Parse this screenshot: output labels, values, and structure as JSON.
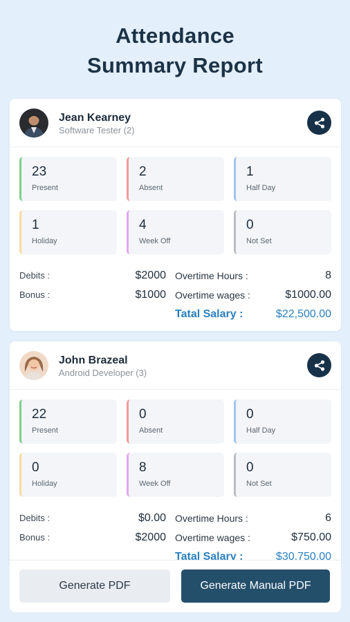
{
  "header": {
    "title_line1": "Attendance",
    "title_line2": "Summary Report"
  },
  "employees": [
    {
      "name": "Jean Kearney",
      "role": "Software Tester (2)",
      "avatar": "avatar-man",
      "stats": [
        {
          "value": "23",
          "label": "Present",
          "color": "#7ccf8a"
        },
        {
          "value": "2",
          "label": "Absent",
          "color": "#f29a9a"
        },
        {
          "value": "1",
          "label": "Half Day",
          "color": "#9fc3f0"
        },
        {
          "value": "1",
          "label": "Holiday",
          "color": "#f5dca0"
        },
        {
          "value": "4",
          "label": "Week Off",
          "color": "#e2a6ef"
        },
        {
          "value": "0",
          "label": "Not Set",
          "color": "#b9bdc2"
        }
      ],
      "debits_label": "Debits :",
      "debits": "$2000",
      "bonus_label": "Bonus :",
      "bonus": "$1000",
      "ot_hours_label": "Overtime Hours :",
      "ot_hours": "8",
      "ot_wages_label": "Overtime wages :",
      "ot_wages": "$1000.00",
      "salary_label": "Tatal Salary :",
      "salary": "$22,500.00"
    },
    {
      "name": "John Brazeal",
      "role": "Android Developer (3)",
      "avatar": "avatar-woman",
      "stats": [
        {
          "value": "22",
          "label": "Present",
          "color": "#7ccf8a"
        },
        {
          "value": "0",
          "label": "Absent",
          "color": "#f29a9a"
        },
        {
          "value": "0",
          "label": "Half Day",
          "color": "#9fc3f0"
        },
        {
          "value": "0",
          "label": "Holiday",
          "color": "#f5dca0"
        },
        {
          "value": "8",
          "label": "Week Off",
          "color": "#e2a6ef"
        },
        {
          "value": "0",
          "label": "Not Set",
          "color": "#b9bdc2"
        }
      ],
      "debits_label": "Debits :",
      "debits": "$0.00",
      "bonus_label": "Bonus :",
      "bonus": "$2000",
      "ot_hours_label": "Overtime Hours :",
      "ot_hours": "6",
      "ot_wages_label": "Overtime wages :",
      "ot_wages": "$750.00",
      "salary_label": "Tatal Salary :",
      "salary": "$30,750.00"
    }
  ],
  "actions": {
    "generate_pdf": "Generate PDF",
    "generate_manual_pdf": "Generate Manual PDF"
  },
  "icons": {
    "share": "share-icon"
  },
  "colors": {
    "accent": "#173248",
    "salary": "#2a7fc0",
    "manual_button": "#244f6b"
  }
}
